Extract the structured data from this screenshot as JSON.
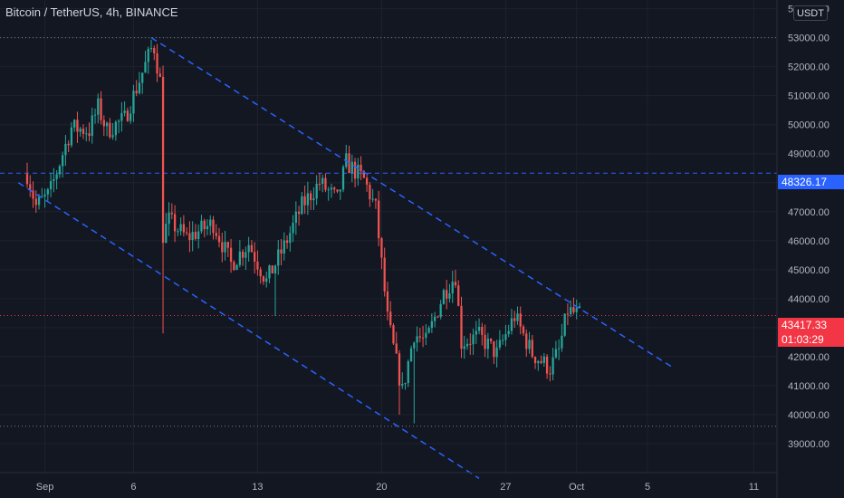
{
  "header": {
    "title": "Bitcoin / TetherUS, 4h, BINANCE",
    "currency": "USDT"
  },
  "colors": {
    "background": "#131722",
    "up": "#26a69a",
    "down": "#ef5350",
    "trendline": "#2962ff",
    "grid": "#1e222d",
    "axis_text": "#b2b5be"
  },
  "price_tags": {
    "level": {
      "label": "48326.17",
      "value": 48326.17
    },
    "last": {
      "label": "43417.33",
      "value": 43417.33,
      "countdown": "01:03:29"
    }
  },
  "chart_data": {
    "type": "candlestick",
    "title": "",
    "x_ticks": [
      "Sep",
      "6",
      "13",
      "20",
      "27",
      "Oct",
      "5",
      "11"
    ],
    "y_ticks": [
      "54000.00",
      "53000.00",
      "52000.00",
      "51000.00",
      "50000.00",
      "49000.00",
      "48000.00",
      "47000.00",
      "46000.00",
      "45000.00",
      "44000.00",
      "43000.00",
      "42000.00",
      "41000.00",
      "40000.00",
      "39000.00"
    ],
    "ylim": [
      38000,
      54300
    ],
    "xlim": [
      "2021-08-31",
      "2021-10-12"
    ],
    "anchors": [
      {
        "t": "2021-08-31 00:00",
        "p": 48300
      },
      {
        "t": "2021-08-31 12:00",
        "p": 47200
      },
      {
        "t": "2021-09-01 06:00",
        "p": 47600
      },
      {
        "t": "2021-09-02 00:00",
        "p": 49000
      },
      {
        "t": "2021-09-02 12:00",
        "p": 49900
      },
      {
        "t": "2021-09-03 12:00",
        "p": 49800
      },
      {
        "t": "2021-09-04 00:00",
        "p": 50600
      },
      {
        "t": "2021-09-04 12:00",
        "p": 49800
      },
      {
        "t": "2021-09-05 12:00",
        "p": 50200
      },
      {
        "t": "2021-09-06 12:00",
        "p": 51800
      },
      {
        "t": "2021-09-07 03:00",
        "p": 52800
      },
      {
        "t": "2021-09-07 12:00",
        "p": 51500
      },
      {
        "t": "2021-09-07 16:00",
        "p": 46200
      },
      {
        "t": "2021-09-08 00:00",
        "p": 46700
      },
      {
        "t": "2021-09-09 00:00",
        "p": 46100
      },
      {
        "t": "2021-09-10 12:00",
        "p": 46600
      },
      {
        "t": "2021-09-11 12:00",
        "p": 45200
      },
      {
        "t": "2021-09-12 12:00",
        "p": 45900
      },
      {
        "t": "2021-09-13 12:00",
        "p": 44600
      },
      {
        "t": "2021-09-14 12:00",
        "p": 45800
      },
      {
        "t": "2021-09-15 12:00",
        "p": 47200
      },
      {
        "t": "2021-09-16 12:00",
        "p": 48000
      },
      {
        "t": "2021-09-17 12:00",
        "p": 47400
      },
      {
        "t": "2021-09-18 00:00",
        "p": 48700
      },
      {
        "t": "2021-09-19 00:00",
        "p": 48100
      },
      {
        "t": "2021-09-19 16:00",
        "p": 47100
      },
      {
        "t": "2021-09-20 08:00",
        "p": 43300
      },
      {
        "t": "2021-09-21 04:00",
        "p": 40800
      },
      {
        "t": "2021-09-21 20:00",
        "p": 42800
      },
      {
        "t": "2021-09-22 12:00",
        "p": 42500
      },
      {
        "t": "2021-09-23 12:00",
        "p": 44200
      },
      {
        "t": "2021-09-24 04:00",
        "p": 44800
      },
      {
        "t": "2021-09-24 12:00",
        "p": 42500
      },
      {
        "t": "2021-09-25 12:00",
        "p": 42700
      },
      {
        "t": "2021-09-26 12:00",
        "p": 42100
      },
      {
        "t": "2021-09-27 12:00",
        "p": 43400
      },
      {
        "t": "2021-09-28 12:00",
        "p": 42100
      },
      {
        "t": "2021-09-29 12:00",
        "p": 41600
      },
      {
        "t": "2021-09-30 00:00",
        "p": 42200
      },
      {
        "t": "2021-09-30 12:00",
        "p": 43600
      },
      {
        "t": "2021-10-01 04:00",
        "p": 43417
      }
    ],
    "candle_interval_hours": 4,
    "levels": [
      {
        "name": "resistance-level",
        "value": 48326.17,
        "style": "dashed"
      },
      {
        "name": "high-level",
        "value": 53000,
        "style": "dotted"
      },
      {
        "name": "low-level",
        "value": 39600,
        "style": "dotted"
      },
      {
        "name": "last-price-level",
        "value": 43417.33,
        "style": "dotted"
      }
    ],
    "trendlines": [
      {
        "name": "upper-channel-line",
        "from": {
          "t": "2021-09-07 00:00",
          "p": 53000
        },
        "to": {
          "t": "2021-10-06 12:00",
          "p": 41600
        }
      },
      {
        "name": "lower-channel-line",
        "from": {
          "t": "2021-08-30 12:00",
          "p": 48000
        },
        "to": {
          "t": "2021-09-25 12:00",
          "p": 37800
        }
      }
    ]
  }
}
